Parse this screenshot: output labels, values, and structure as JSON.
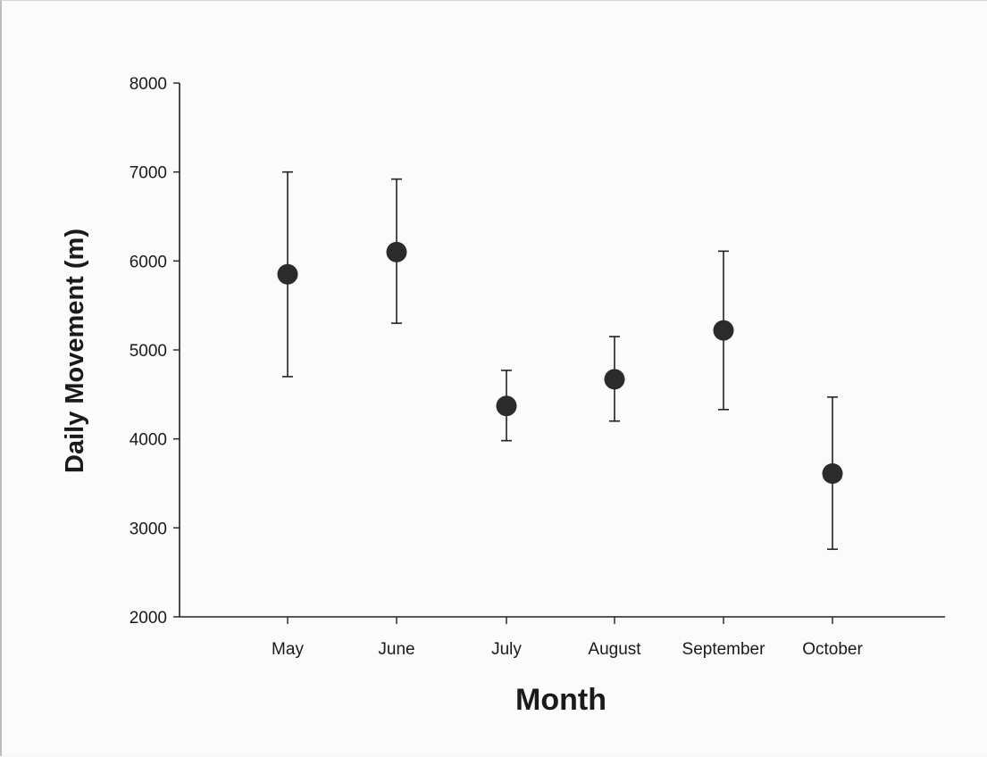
{
  "chart_data": {
    "type": "scatter",
    "title": "",
    "xlabel": "Month",
    "ylabel": "Daily Movement (m)",
    "categories": [
      "May",
      "June",
      "July",
      "August",
      "September",
      "October"
    ],
    "series": [
      {
        "values": [
          5850,
          6100,
          4370,
          4670,
          5220,
          3610
        ],
        "error_low": [
          4700,
          5300,
          3980,
          4200,
          4330,
          2760
        ],
        "error_high": [
          7000,
          6920,
          4770,
          5150,
          6110,
          4470
        ]
      }
    ],
    "ylim": [
      2000,
      8000
    ],
    "yticks": [
      "2000",
      "3000",
      "4000",
      "5000",
      "6000",
      "7000",
      "8000"
    ],
    "grid": false,
    "legend": "none",
    "colors": {
      "marker": "#2b2b2b",
      "axis": "#222222"
    }
  }
}
